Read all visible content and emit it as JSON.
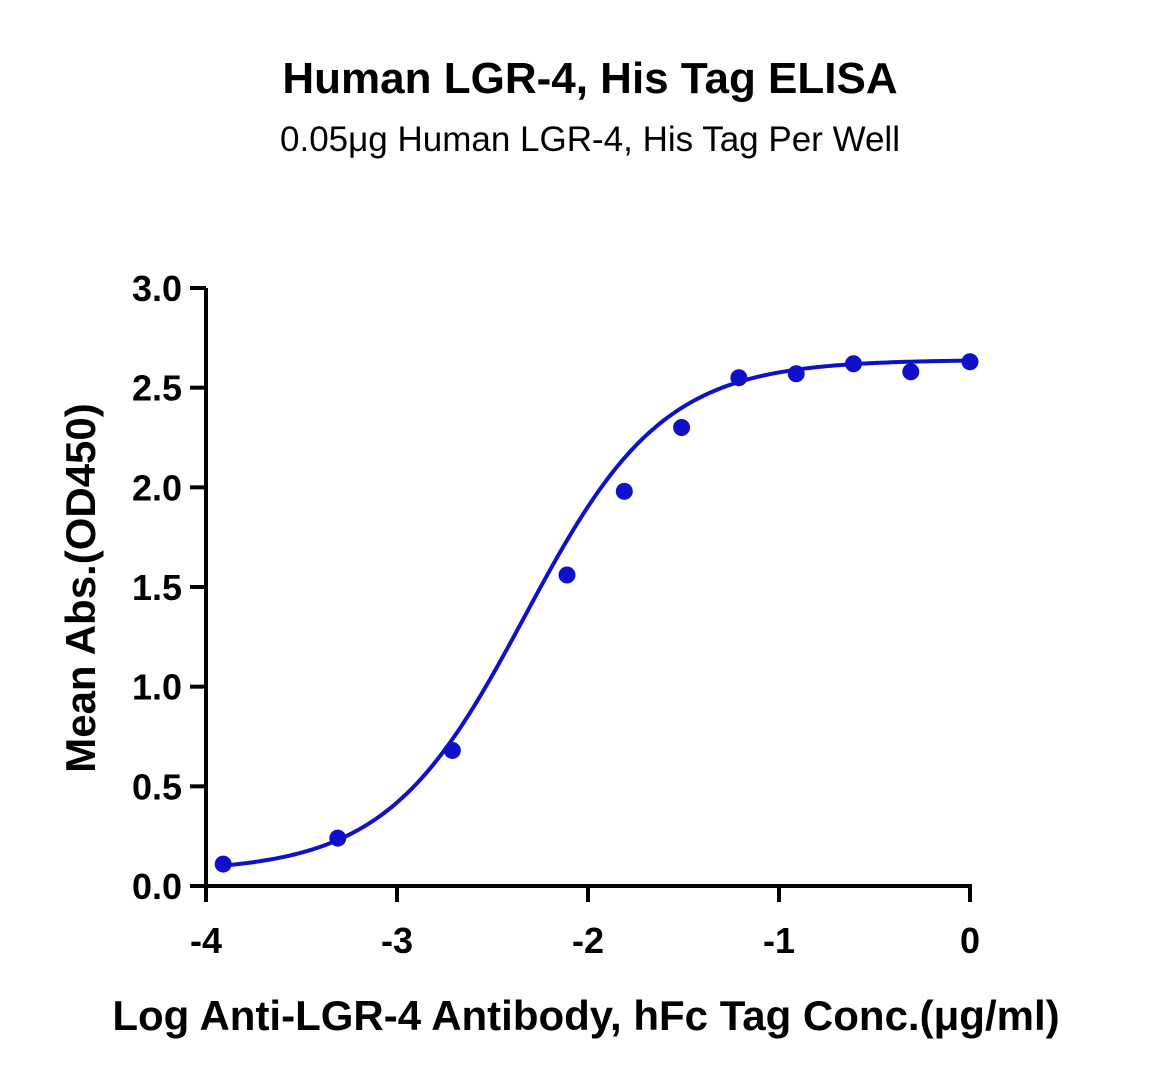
{
  "chart_data": {
    "type": "scatter",
    "title": "Human LGR-4, His Tag ELISA",
    "subtitle": "0.05μg Human LGR-4, His Tag Per Well",
    "xlabel": "Log Anti-LGR-4 Antibody, hFc Tag Conc.(μg/ml)",
    "ylabel": "Mean Abs.(OD450)",
    "xlim": [
      -4,
      0
    ],
    "ylim": [
      0,
      3.0
    ],
    "xticks": [
      -4,
      -3,
      -2,
      -1,
      0
    ],
    "yticks": [
      0.0,
      0.5,
      1.0,
      1.5,
      2.0,
      2.5,
      3.0
    ],
    "xtick_labels": [
      "-4",
      "-3",
      "-2",
      "-1",
      "0"
    ],
    "ytick_labels": [
      "0.0",
      "0.5",
      "1.0",
      "1.5",
      "2.0",
      "2.5",
      "3.0"
    ],
    "grid": false,
    "color": "#1010c8",
    "points": [
      {
        "x": -3.91,
        "y": 0.11
      },
      {
        "x": -3.31,
        "y": 0.24
      },
      {
        "x": -2.71,
        "y": 0.68
      },
      {
        "x": -2.11,
        "y": 1.56
      },
      {
        "x": -1.81,
        "y": 1.98
      },
      {
        "x": -1.51,
        "y": 2.3
      },
      {
        "x": -1.21,
        "y": 2.55
      },
      {
        "x": -0.91,
        "y": 2.57
      },
      {
        "x": -0.61,
        "y": 2.62
      },
      {
        "x": -0.31,
        "y": 2.58
      },
      {
        "x": 0.0,
        "y": 2.63
      }
    ],
    "fit": {
      "model": "4PL",
      "bottom": 0.07,
      "top": 2.64,
      "log_ec50": -2.33,
      "hill_slope": 1.2,
      "x_range": [
        -3.91,
        0.0
      ]
    }
  }
}
